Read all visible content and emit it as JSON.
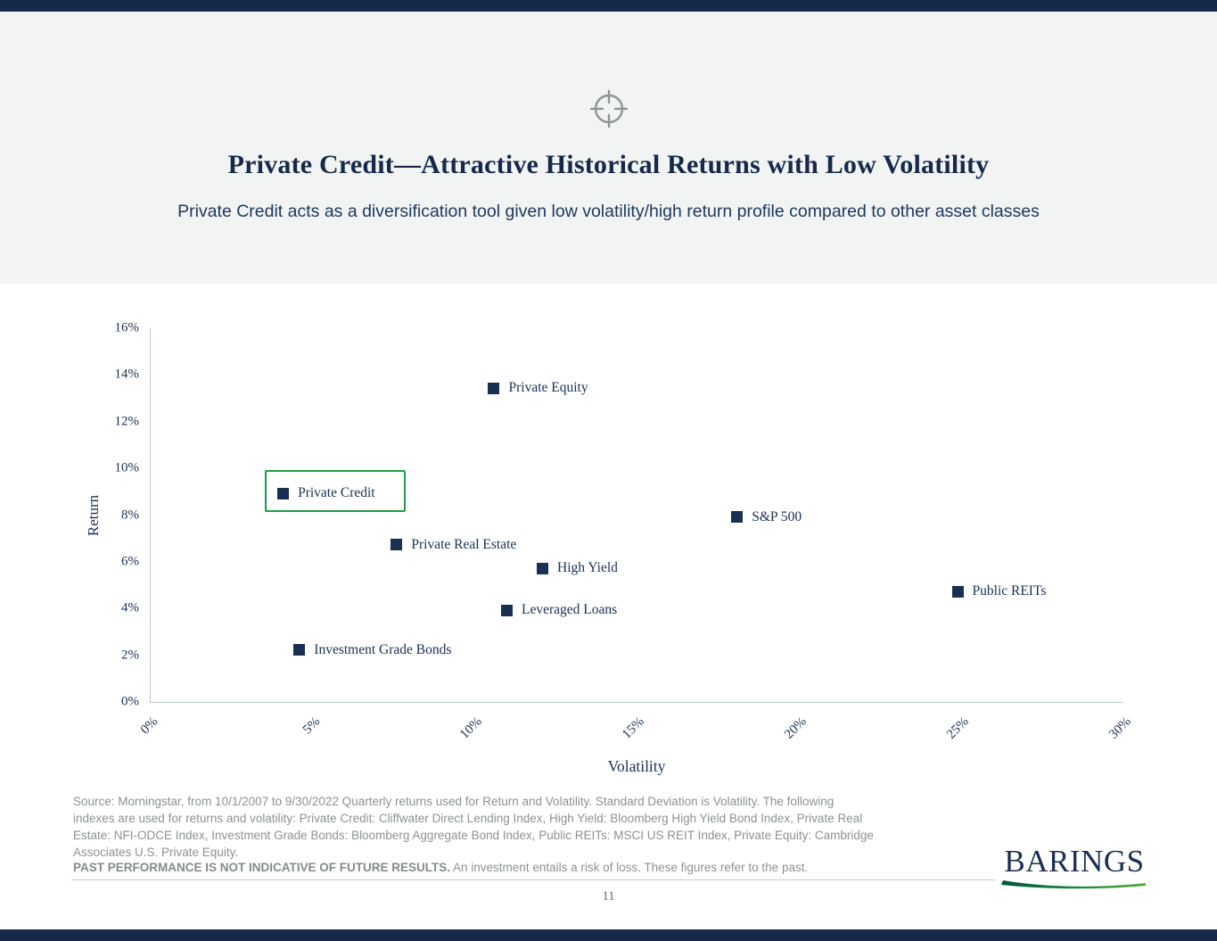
{
  "header": {
    "title": "Private Credit—Attractive Historical Returns with Low Volatility",
    "subtitle": "Private Credit acts as a diversification tool given low volatility/high return profile compared to other asset classes",
    "icon": "target-crosshair-icon"
  },
  "chart_data": {
    "type": "scatter",
    "title": "",
    "xlabel": "Volatility",
    "ylabel": "Return",
    "xlim": [
      0,
      30
    ],
    "ylim": [
      0,
      16
    ],
    "x_ticks": [
      "0%",
      "5%",
      "10%",
      "15%",
      "20%",
      "25%",
      "30%"
    ],
    "y_ticks": [
      "0%",
      "2%",
      "4%",
      "6%",
      "8%",
      "10%",
      "12%",
      "14%",
      "16%"
    ],
    "grid": false,
    "legend": "none",
    "marker_color": "#1b2f54",
    "highlight_box_color": "#1c9e49",
    "points": [
      {
        "label": "Private Equity",
        "x": 10.6,
        "y": 13.5,
        "highlighted": false
      },
      {
        "label": "Private Credit",
        "x": 4.1,
        "y": 9.0,
        "highlighted": true
      },
      {
        "label": "S&P 500",
        "x": 18.1,
        "y": 8.0,
        "highlighted": false
      },
      {
        "label": "Private Real Estate",
        "x": 7.6,
        "y": 6.8,
        "highlighted": false
      },
      {
        "label": "High Yield",
        "x": 12.1,
        "y": 5.8,
        "highlighted": false
      },
      {
        "label": "Public REITs",
        "x": 24.9,
        "y": 4.8,
        "highlighted": false
      },
      {
        "label": "Leveraged Loans",
        "x": 11.0,
        "y": 4.0,
        "highlighted": false
      },
      {
        "label": "Investment Grade Bonds",
        "x": 4.6,
        "y": 2.3,
        "highlighted": false
      }
    ]
  },
  "footer": {
    "source_lines": [
      "Source: Morningstar, from 10/1/2007 to 9/30/2022 Quarterly returns used for Return and Volatility. Standard Deviation is Volatility. The following",
      "indexes are used for returns and volatility: Private Credit: Cliffwater Direct Lending Index, High Yield: Bloomberg High Yield Bond Index, Private Real",
      "Estate: NFI-ODCE Index, Investment Grade Bonds: Bloomberg Aggregate Bond Index, Public REITs: MSCI US REIT Index, Private Equity: Cambridge",
      "Associates U.S. Private Equity."
    ],
    "disclaimer_bold": "PAST PERFORMANCE IS NOT INDICATIVE OF FUTURE RESULTS.",
    "disclaimer_rest": " An investment entails a risk of loss. These figures refer to the past.",
    "page_number": "11",
    "logo_text": "BARINGS",
    "logo_swoosh_icon": "logo-swoosh-icon"
  },
  "colors": {
    "navy": "#16294b",
    "header_background": "#f2f3f3",
    "highlight_green": "#1c9e49",
    "footer_gray": "#8d9292",
    "axis_gray": "#bcc6d0",
    "logo_green_dark": "#00573f",
    "logo_green_light": "#4fae3a"
  }
}
